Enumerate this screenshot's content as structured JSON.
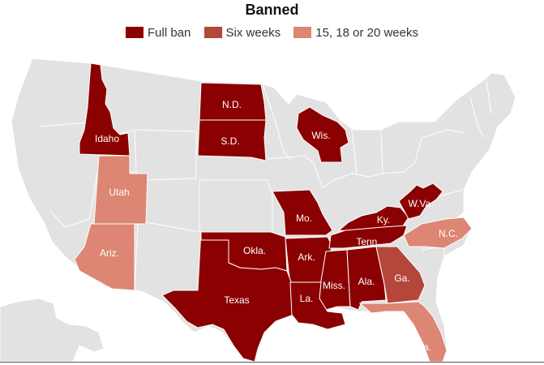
{
  "title": "Banned",
  "colors": {
    "full_ban": "#8b0000",
    "six_weeks": "#b5473a",
    "weeks_15_20": "#dd8673",
    "other": "#e2e2e2",
    "border": "#ffffff"
  },
  "legend": [
    {
      "label": "Full ban",
      "category": "full_ban"
    },
    {
      "label": "Six weeks",
      "category": "six_weeks"
    },
    {
      "label": "15, 18 or 20 weeks",
      "category": "weeks_15_20"
    }
  ],
  "states": [
    {
      "label": "Idaho",
      "category": "full_ban"
    },
    {
      "label": "N.D.",
      "category": "full_ban"
    },
    {
      "label": "S.D.",
      "category": "full_ban"
    },
    {
      "label": "Wis.",
      "category": "full_ban"
    },
    {
      "label": "Utah",
      "category": "weeks_15_20"
    },
    {
      "label": "Mo.",
      "category": "full_ban"
    },
    {
      "label": "Ky.",
      "category": "full_ban"
    },
    {
      "label": "W.Va.",
      "category": "full_ban"
    },
    {
      "label": "Ariz.",
      "category": "weeks_15_20"
    },
    {
      "label": "Okla.",
      "category": "full_ban"
    },
    {
      "label": "Ark.",
      "category": "full_ban"
    },
    {
      "label": "Tenn.",
      "category": "full_ban"
    },
    {
      "label": "N.C.",
      "category": "weeks_15_20"
    },
    {
      "label": "Texas",
      "category": "full_ban"
    },
    {
      "label": "Miss.",
      "category": "full_ban"
    },
    {
      "label": "Ala.",
      "category": "full_ban"
    },
    {
      "label": "Ga.",
      "category": "six_weeks"
    },
    {
      "label": "La.",
      "category": "full_ban"
    },
    {
      "label": "Fla.",
      "category": "weeks_15_20"
    }
  ]
}
